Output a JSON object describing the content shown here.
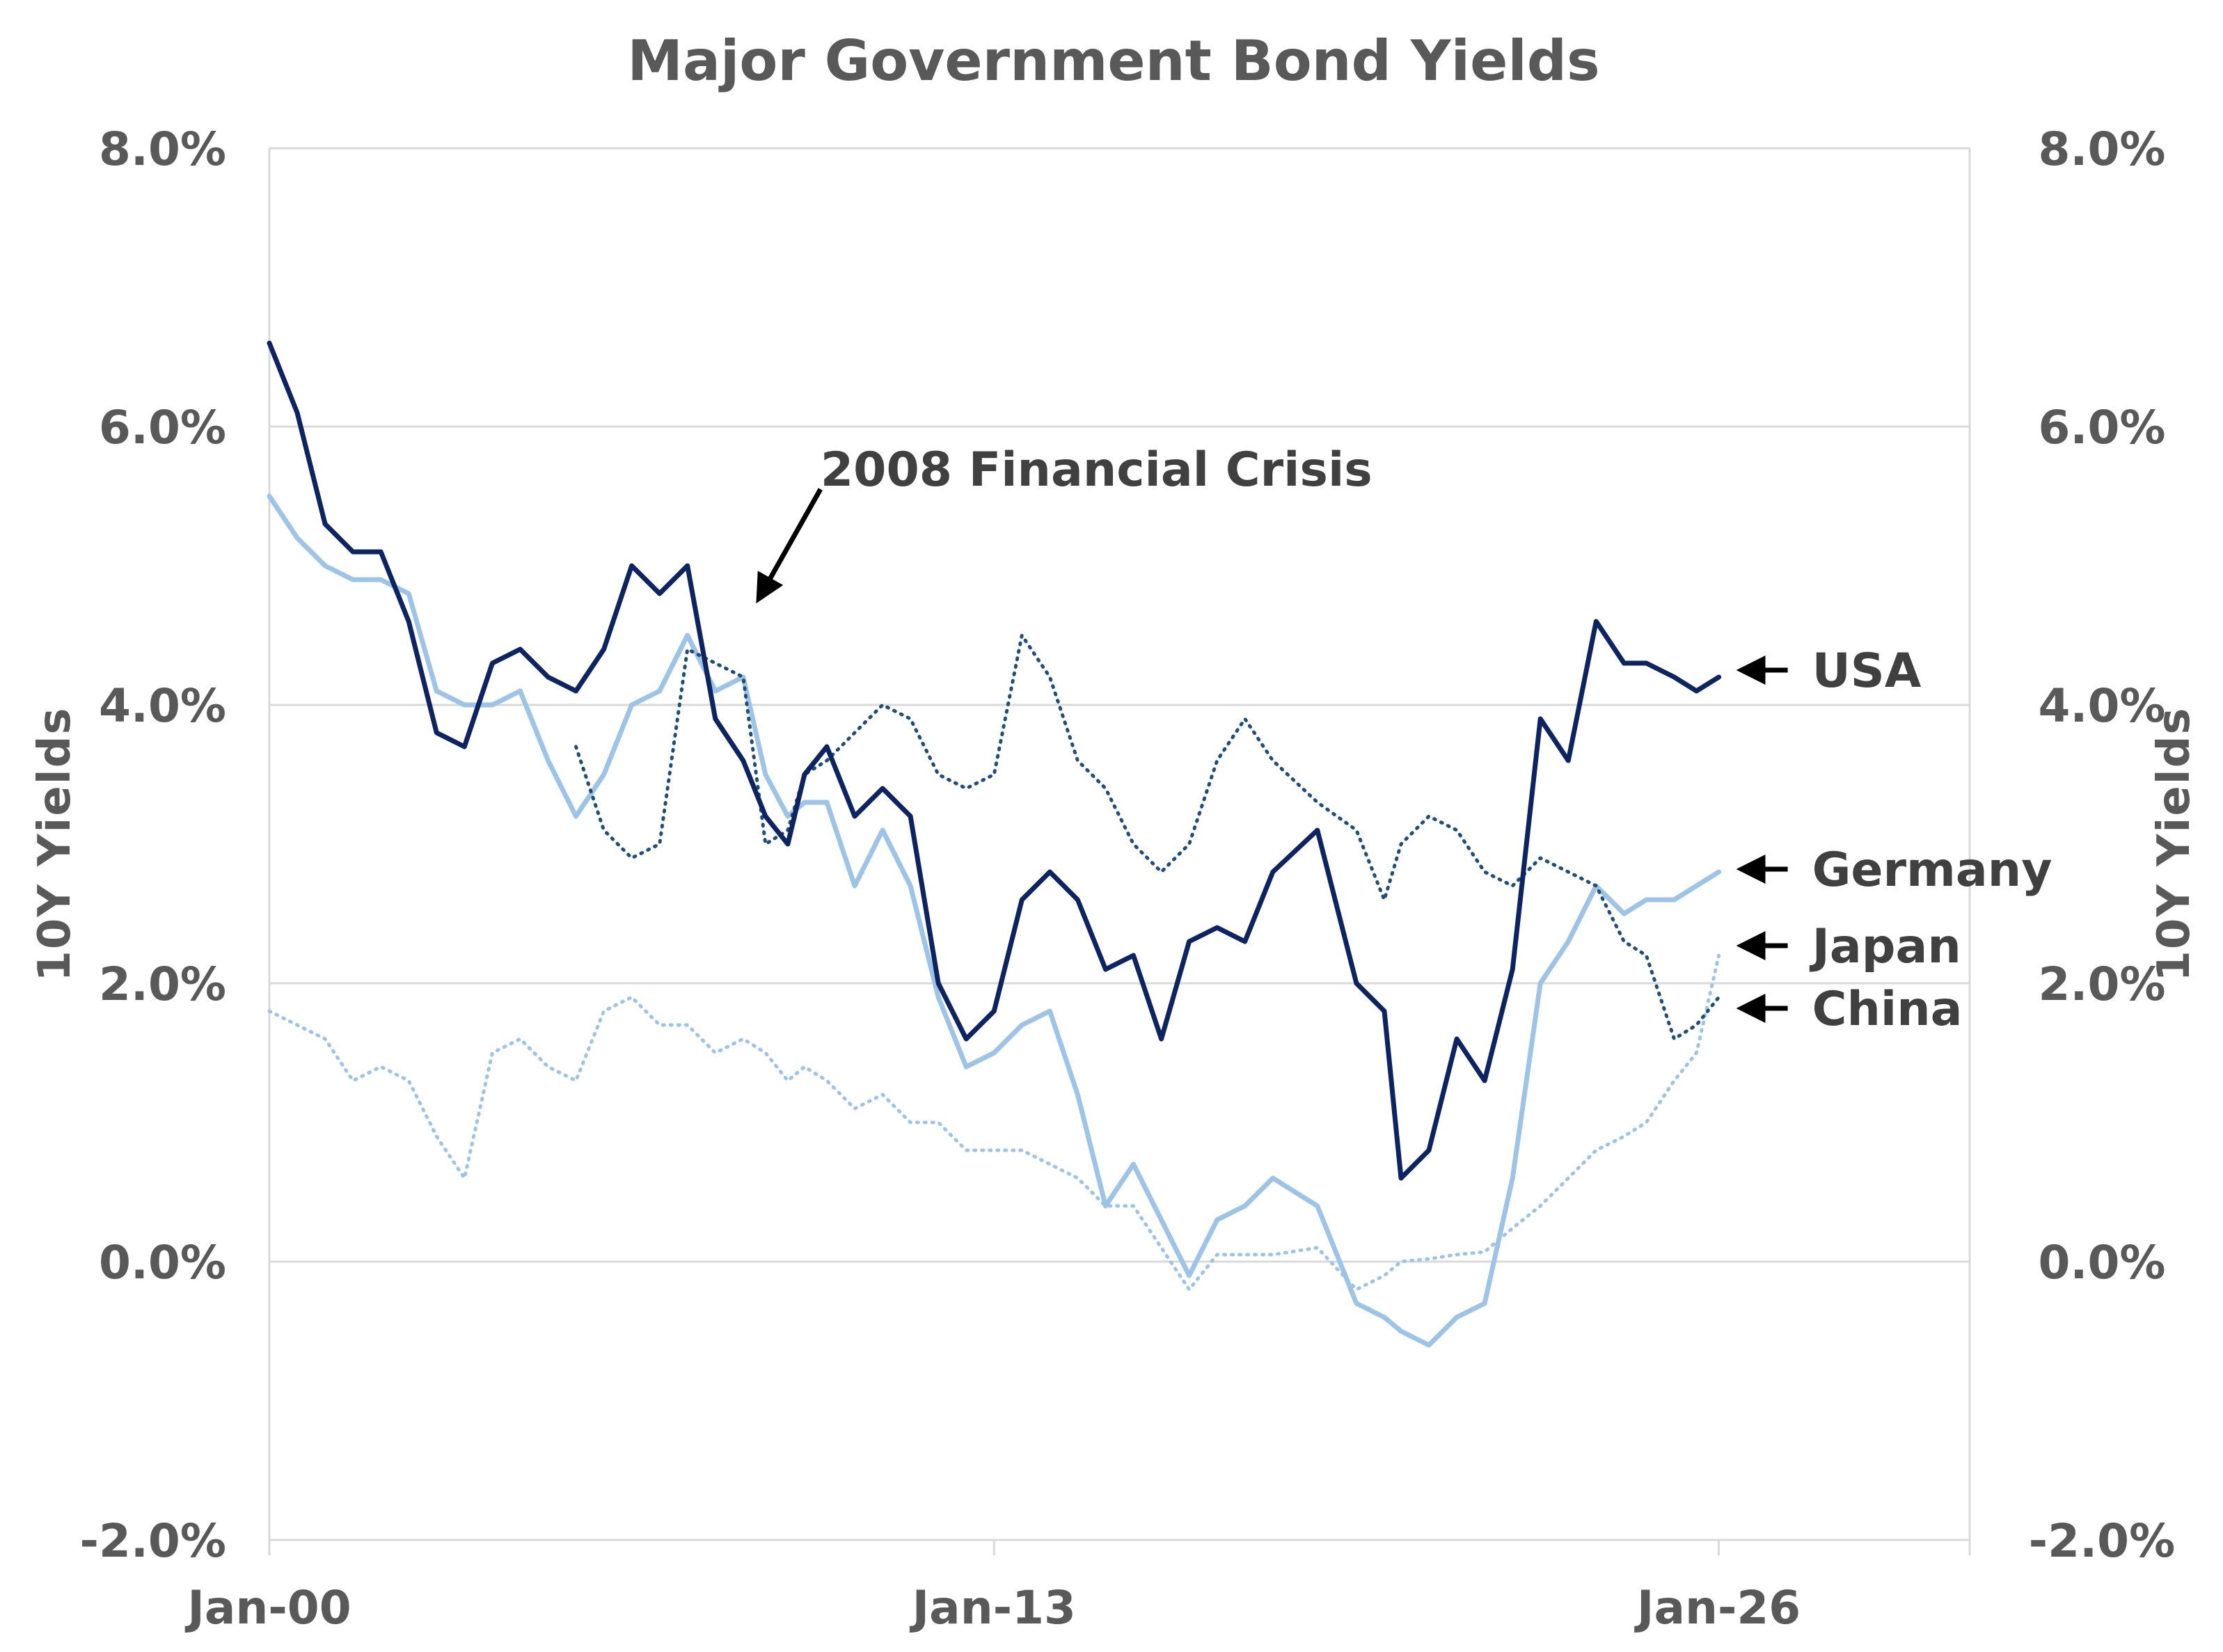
{
  "chart_data": {
    "type": "line",
    "title": "Major Government Bond Yields",
    "ylabel_left": "10Y  Yields",
    "ylabel_right": "10Y  Yields",
    "ylim": [
      -2.0,
      8.0
    ],
    "xlim": [
      2000.0,
      2030.5
    ],
    "y_ticks": [
      "8.0%",
      "6.0%",
      "4.0%",
      "2.0%",
      "0.0%",
      "-2.0%"
    ],
    "y_tick_values": [
      8,
      6,
      4,
      2,
      0,
      -2
    ],
    "x_ticks": [
      "Jan-00",
      "Jan-13",
      "Jan-26"
    ],
    "x_tick_values": [
      2000,
      2013,
      2026
    ],
    "grid": true,
    "annotations": [
      {
        "text": "2008 Financial Crisis",
        "x": 2008.7,
        "y": 4.7
      },
      {
        "text": "USA",
        "series": "USA",
        "x": 2026.3,
        "y": 4.25
      },
      {
        "text": "Germany",
        "series": "Germany",
        "x": 2026.3,
        "y": 2.82
      },
      {
        "text": "Japan",
        "series": "Japan",
        "x": 2026.3,
        "y": 2.27
      },
      {
        "text": "China",
        "series": "China",
        "x": 2026.3,
        "y": 1.82
      }
    ],
    "series": [
      {
        "name": "USA",
        "color": "#0d2461",
        "style": "solid",
        "width": 7,
        "x": [
          2000.0,
          2000.5,
          2001.0,
          2001.5,
          2002.0,
          2002.5,
          2003.0,
          2003.5,
          2004.0,
          2004.5,
          2005.0,
          2005.5,
          2006.0,
          2006.5,
          2007.0,
          2007.5,
          2008.0,
          2008.5,
          2008.9,
          2009.3,
          2009.6,
          2010.0,
          2010.5,
          2011.0,
          2011.5,
          2012.0,
          2012.5,
          2013.0,
          2013.5,
          2014.0,
          2014.5,
          2015.0,
          2015.5,
          2016.0,
          2016.5,
          2017.0,
          2017.5,
          2018.0,
          2018.8,
          2019.5,
          2020.0,
          2020.3,
          2020.8,
          2021.3,
          2021.8,
          2022.3,
          2022.8,
          2023.3,
          2023.8,
          2024.3,
          2024.7,
          2025.2,
          2025.6,
          2026.0
        ],
        "y": [
          6.6,
          6.1,
          5.3,
          5.1,
          5.1,
          4.6,
          3.8,
          3.7,
          4.3,
          4.4,
          4.2,
          4.1,
          4.4,
          5.0,
          4.8,
          5.0,
          3.9,
          3.6,
          3.2,
          3.0,
          3.5,
          3.7,
          3.2,
          3.4,
          3.2,
          2.0,
          1.6,
          1.8,
          2.6,
          2.8,
          2.6,
          2.1,
          2.2,
          1.6,
          2.3,
          2.4,
          2.3,
          2.8,
          3.1,
          2.0,
          1.8,
          0.6,
          0.8,
          1.6,
          1.3,
          2.1,
          3.9,
          3.6,
          4.6,
          4.3,
          4.3,
          4.2,
          4.1,
          4.2
        ]
      },
      {
        "name": "Germany",
        "color": "#9dc3e6",
        "style": "solid",
        "width": 7,
        "x": [
          2000.0,
          2000.5,
          2001.0,
          2001.5,
          2002.0,
          2002.5,
          2003.0,
          2003.5,
          2004.0,
          2004.5,
          2005.0,
          2005.5,
          2006.0,
          2006.5,
          2007.0,
          2007.5,
          2008.0,
          2008.5,
          2008.9,
          2009.3,
          2009.6,
          2010.0,
          2010.5,
          2011.0,
          2011.5,
          2012.0,
          2012.5,
          2013.0,
          2013.5,
          2014.0,
          2014.5,
          2015.0,
          2015.5,
          2016.0,
          2016.5,
          2017.0,
          2017.5,
          2018.0,
          2018.8,
          2019.5,
          2020.0,
          2020.3,
          2020.8,
          2021.3,
          2021.8,
          2022.3,
          2022.8,
          2023.3,
          2023.8,
          2024.3,
          2024.7,
          2025.2,
          2025.6,
          2026.0
        ],
        "y": [
          5.5,
          5.2,
          5.0,
          4.9,
          4.9,
          4.8,
          4.1,
          4.0,
          4.0,
          4.1,
          3.6,
          3.2,
          3.5,
          4.0,
          4.1,
          4.5,
          4.1,
          4.2,
          3.5,
          3.2,
          3.3,
          3.3,
          2.7,
          3.1,
          2.7,
          1.9,
          1.4,
          1.5,
          1.7,
          1.8,
          1.2,
          0.4,
          0.7,
          0.3,
          -0.1,
          0.3,
          0.4,
          0.6,
          0.4,
          -0.3,
          -0.4,
          -0.5,
          -0.6,
          -0.4,
          -0.3,
          0.6,
          2.0,
          2.3,
          2.7,
          2.5,
          2.6,
          2.6,
          2.7,
          2.8
        ]
      },
      {
        "name": "Japan",
        "color": "#9dc3e6",
        "style": "dotted",
        "width": 5,
        "x": [
          2000.0,
          2000.5,
          2001.0,
          2001.5,
          2002.0,
          2002.5,
          2003.0,
          2003.5,
          2004.0,
          2004.5,
          2005.0,
          2005.5,
          2006.0,
          2006.5,
          2007.0,
          2007.5,
          2008.0,
          2008.5,
          2008.9,
          2009.3,
          2009.6,
          2010.0,
          2010.5,
          2011.0,
          2011.5,
          2012.0,
          2012.5,
          2013.0,
          2013.5,
          2014.0,
          2014.5,
          2015.0,
          2015.5,
          2016.0,
          2016.5,
          2017.0,
          2017.5,
          2018.0,
          2018.8,
          2019.5,
          2020.0,
          2020.3,
          2020.8,
          2021.3,
          2021.8,
          2022.3,
          2022.8,
          2023.3,
          2023.8,
          2024.3,
          2024.7,
          2025.2,
          2025.6,
          2026.0
        ],
        "y": [
          1.8,
          1.7,
          1.6,
          1.3,
          1.4,
          1.3,
          0.9,
          0.6,
          1.5,
          1.6,
          1.4,
          1.3,
          1.8,
          1.9,
          1.7,
          1.7,
          1.5,
          1.6,
          1.5,
          1.3,
          1.4,
          1.3,
          1.1,
          1.2,
          1.0,
          1.0,
          0.8,
          0.8,
          0.8,
          0.7,
          0.6,
          0.4,
          0.4,
          0.1,
          -0.2,
          0.05,
          0.05,
          0.05,
          0.1,
          -0.2,
          -0.1,
          0.0,
          0.02,
          0.05,
          0.07,
          0.24,
          0.4,
          0.6,
          0.8,
          0.9,
          1.0,
          1.3,
          1.5,
          2.2
        ]
      },
      {
        "name": "China",
        "color": "#1f4e79",
        "style": "dotted",
        "width": 5,
        "x": [
          2005.5,
          2006.0,
          2006.5,
          2007.0,
          2007.5,
          2008.0,
          2008.5,
          2008.9,
          2009.3,
          2009.6,
          2010.0,
          2010.5,
          2011.0,
          2011.5,
          2012.0,
          2012.5,
          2013.0,
          2013.5,
          2014.0,
          2014.5,
          2015.0,
          2015.5,
          2016.0,
          2016.5,
          2017.0,
          2017.5,
          2018.0,
          2018.8,
          2019.5,
          2020.0,
          2020.3,
          2020.8,
          2021.3,
          2021.8,
          2022.3,
          2022.8,
          2023.3,
          2023.8,
          2024.3,
          2024.7,
          2025.2,
          2025.6,
          2026.0
        ],
        "y": [
          3.7,
          3.1,
          2.9,
          3.0,
          4.4,
          4.3,
          4.2,
          3.0,
          3.1,
          3.5,
          3.6,
          3.8,
          4.0,
          3.9,
          3.5,
          3.4,
          3.5,
          4.5,
          4.2,
          3.6,
          3.4,
          3.0,
          2.8,
          3.0,
          3.6,
          3.9,
          3.6,
          3.3,
          3.1,
          2.6,
          3.0,
          3.2,
          3.1,
          2.8,
          2.7,
          2.9,
          2.8,
          2.7,
          2.3,
          2.2,
          1.6,
          1.7,
          1.9
        ]
      }
    ]
  }
}
